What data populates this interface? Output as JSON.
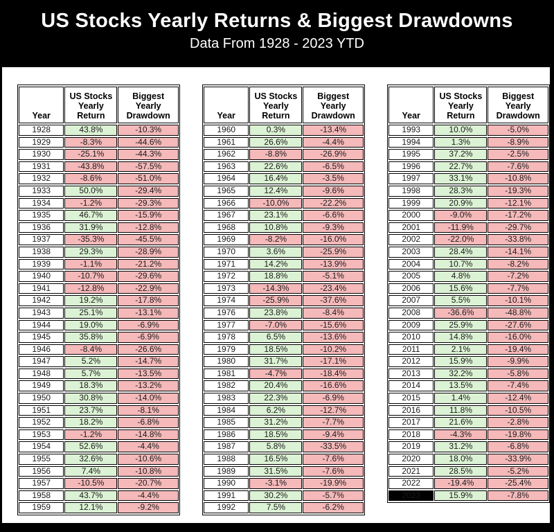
{
  "header": {
    "title": "US Stocks Yearly Returns & Biggest Drawdowns",
    "subtitle": "Data From 1928 - 2023 YTD"
  },
  "chart_data": {
    "type": "table",
    "title": "US Stocks Yearly Returns & Biggest Drawdowns",
    "subtitle": "Data From 1928 - 2023 YTD",
    "columns": [
      "Year",
      "US Stocks Yearly Return",
      "Biggest Yearly Drawdown"
    ],
    "highlight_year": "2023",
    "colors": {
      "positive_bg": "#dcf2d4",
      "negative_bg": "#f5b9ba",
      "highlight_bg": "#000000",
      "highlight_text": "#ffffff",
      "page_bg": "#000000",
      "panel_bg": "#ffffff"
    },
    "tables": [
      {
        "rows": [
          [
            "1928",
            "43.8%",
            "-10.3%"
          ],
          [
            "1929",
            "-8.3%",
            "-44.6%"
          ],
          [
            "1930",
            "-25.1%",
            "-44.3%"
          ],
          [
            "1931",
            "-43.8%",
            "-57.5%"
          ],
          [
            "1932",
            "-8.6%",
            "-51.0%"
          ],
          [
            "1933",
            "50.0%",
            "-29.4%"
          ],
          [
            "1934",
            "-1.2%",
            "-29.3%"
          ],
          [
            "1935",
            "46.7%",
            "-15.9%"
          ],
          [
            "1936",
            "31.9%",
            "-12.8%"
          ],
          [
            "1937",
            "-35.3%",
            "-45.5%"
          ],
          [
            "1938",
            "29.3%",
            "-28.9%"
          ],
          [
            "1939",
            "-1.1%",
            "-21.2%"
          ],
          [
            "1940",
            "-10.7%",
            "-29.6%"
          ],
          [
            "1941",
            "-12.8%",
            "-22.9%"
          ],
          [
            "1942",
            "19.2%",
            "-17.8%"
          ],
          [
            "1943",
            "25.1%",
            "-13.1%"
          ],
          [
            "1944",
            "19.0%",
            "-6.9%"
          ],
          [
            "1945",
            "35.8%",
            "-6.9%"
          ],
          [
            "1946",
            "-8.4%",
            "-26.6%"
          ],
          [
            "1947",
            "5.2%",
            "-14.7%"
          ],
          [
            "1948",
            "5.7%",
            "-13.5%"
          ],
          [
            "1949",
            "18.3%",
            "-13.2%"
          ],
          [
            "1950",
            "30.8%",
            "-14.0%"
          ],
          [
            "1951",
            "23.7%",
            "-8.1%"
          ],
          [
            "1952",
            "18.2%",
            "-6.8%"
          ],
          [
            "1953",
            "-1.2%",
            "-14.8%"
          ],
          [
            "1954",
            "52.6%",
            "-4.4%"
          ],
          [
            "1955",
            "32.6%",
            "-10.6%"
          ],
          [
            "1956",
            "7.4%",
            "-10.8%"
          ],
          [
            "1957",
            "-10.5%",
            "-20.7%"
          ],
          [
            "1958",
            "43.7%",
            "-4.4%"
          ],
          [
            "1959",
            "12.1%",
            "-9.2%"
          ]
        ]
      },
      {
        "rows": [
          [
            "1960",
            "0.3%",
            "-13.4%"
          ],
          [
            "1961",
            "26.6%",
            "-4.4%"
          ],
          [
            "1962",
            "-8.8%",
            "-26.9%"
          ],
          [
            "1963",
            "22.6%",
            "-6.5%"
          ],
          [
            "1964",
            "16.4%",
            "-3.5%"
          ],
          [
            "1965",
            "12.4%",
            "-9.6%"
          ],
          [
            "1966",
            "-10.0%",
            "-22.2%"
          ],
          [
            "1967",
            "23.1%",
            "-6.6%"
          ],
          [
            "1968",
            "10.8%",
            "-9.3%"
          ],
          [
            "1969",
            "-8.2%",
            "-16.0%"
          ],
          [
            "1970",
            "3.6%",
            "-25.9%"
          ],
          [
            "1971",
            "14.2%",
            "-13.9%"
          ],
          [
            "1972",
            "18.8%",
            "-5.1%"
          ],
          [
            "1973",
            "-14.3%",
            "-23.4%"
          ],
          [
            "1974",
            "-25.9%",
            "-37.6%"
          ],
          [
            "1976",
            "23.8%",
            "-8.4%"
          ],
          [
            "1977",
            "-7.0%",
            "-15.6%"
          ],
          [
            "1978",
            "6.5%",
            "-13.6%"
          ],
          [
            "1979",
            "18.5%",
            "-10.2%"
          ],
          [
            "1980",
            "31.7%",
            "-17.1%"
          ],
          [
            "1981",
            "-4.7%",
            "-18.4%"
          ],
          [
            "1982",
            "20.4%",
            "-16.6%"
          ],
          [
            "1983",
            "22.3%",
            "-6.9%"
          ],
          [
            "1984",
            "6.2%",
            "-12.7%"
          ],
          [
            "1985",
            "31.2%",
            "-7.7%"
          ],
          [
            "1986",
            "18.5%",
            "-9.4%"
          ],
          [
            "1987",
            "5.8%",
            "-33.5%"
          ],
          [
            "1988",
            "16.5%",
            "-7.6%"
          ],
          [
            "1989",
            "31.5%",
            "-7.6%"
          ],
          [
            "1990",
            "-3.1%",
            "-19.9%"
          ],
          [
            "1991",
            "30.2%",
            "-5.7%"
          ],
          [
            "1992",
            "7.5%",
            "-6.2%"
          ]
        ]
      },
      {
        "rows": [
          [
            "1993",
            "10.0%",
            "-5.0%"
          ],
          [
            "1994",
            "1.3%",
            "-8.9%"
          ],
          [
            "1995",
            "37.2%",
            "-2.5%"
          ],
          [
            "1996",
            "22.7%",
            "-7.6%"
          ],
          [
            "1997",
            "33.1%",
            "-10.8%"
          ],
          [
            "1998",
            "28.3%",
            "-19.3%"
          ],
          [
            "1999",
            "20.9%",
            "-12.1%"
          ],
          [
            "2000",
            "-9.0%",
            "-17.2%"
          ],
          [
            "2001",
            "-11.9%",
            "-29.7%"
          ],
          [
            "2002",
            "-22.0%",
            "-33.8%"
          ],
          [
            "2003",
            "28.4%",
            "-14.1%"
          ],
          [
            "2004",
            "10.7%",
            "-8.2%"
          ],
          [
            "2005",
            "4.8%",
            "-7.2%"
          ],
          [
            "2006",
            "15.6%",
            "-7.7%"
          ],
          [
            "2007",
            "5.5%",
            "-10.1%"
          ],
          [
            "2008",
            "-36.6%",
            "-48.8%"
          ],
          [
            "2009",
            "25.9%",
            "-27.6%"
          ],
          [
            "2010",
            "14.8%",
            "-16.0%"
          ],
          [
            "2011",
            "2.1%",
            "-19.4%"
          ],
          [
            "2012",
            "15.9%",
            "-9.9%"
          ],
          [
            "2013",
            "32.2%",
            "-5.8%"
          ],
          [
            "2014",
            "13.5%",
            "-7.4%"
          ],
          [
            "2015",
            "1.4%",
            "-12.4%"
          ],
          [
            "2016",
            "11.8%",
            "-10.5%"
          ],
          [
            "2017",
            "21.6%",
            "-2.8%"
          ],
          [
            "2018",
            "-4.3%",
            "-19.8%"
          ],
          [
            "2019",
            "31.2%",
            "-6.8%"
          ],
          [
            "2020",
            "18.0%",
            "-33.9%"
          ],
          [
            "2021",
            "28.5%",
            "-5.2%"
          ],
          [
            "2022",
            "-19.4%",
            "-25.4%"
          ],
          [
            "2023",
            "15.9%",
            "-7.8%"
          ]
        ]
      }
    ]
  }
}
